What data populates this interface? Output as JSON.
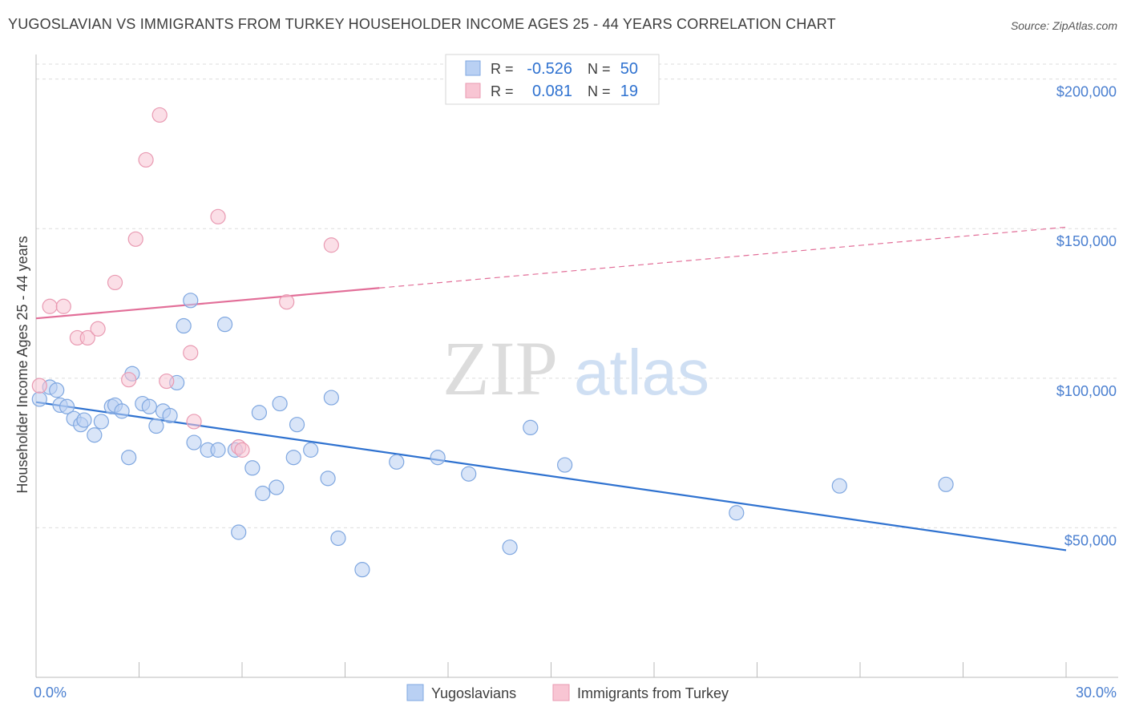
{
  "header": {
    "title": "YUGOSLAVIAN VS IMMIGRANTS FROM TURKEY HOUSEHOLDER INCOME AGES 25 - 44 YEARS CORRELATION CHART",
    "source": "Source: ZipAtlas.com"
  },
  "watermark": {
    "zip": "ZIP",
    "atlas": "atlas"
  },
  "colors": {
    "blue_fill": "#b9d0f3",
    "blue_stroke": "#7fa7e0",
    "blue_line": "#2f72d0",
    "pink_fill": "#f8c5d3",
    "pink_stroke": "#e99ab2",
    "pink_line": "#e26e98",
    "tick_text": "#4a7fd0",
    "grid": "#dddddd"
  },
  "stats_box": {
    "rows": [
      {
        "r_label": "R =",
        "r_value": "-0.526",
        "n_label": "N =",
        "n_value": "50",
        "color": "#b9d0f3"
      },
      {
        "r_label": "R =",
        "r_value": "0.081",
        "n_label": "N =",
        "n_value": "19",
        "color": "#f8c5d3"
      }
    ]
  },
  "chart_data": {
    "type": "scatter",
    "title": "YUGOSLAVIAN VS IMMIGRANTS FROM TURKEY HOUSEHOLDER INCOME AGES 25 - 44 YEARS CORRELATION CHART",
    "xlabel": "",
    "ylabel": "Householder Income Ages 25 - 44 years",
    "xlim": [
      0,
      30
    ],
    "ylim": [
      0,
      205000
    ],
    "x_tick_labels": [
      "0.0%",
      "30.0%"
    ],
    "y_ticks": [
      50000,
      100000,
      150000,
      200000
    ],
    "y_tick_labels": [
      "$50,000",
      "$100,000",
      "$150,000",
      "$200,000"
    ],
    "grid": true,
    "legend_position": "bottom-center",
    "series": [
      {
        "name": "Yugoslavians",
        "color": "#b9d0f3",
        "trend": {
          "x": [
            0,
            30
          ],
          "y": [
            92000,
            42500
          ],
          "dashed_from": null
        },
        "points": [
          [
            0.1,
            93000
          ],
          [
            0.4,
            97000
          ],
          [
            0.6,
            96000
          ],
          [
            0.7,
            91000
          ],
          [
            0.9,
            90500
          ],
          [
            1.1,
            86500
          ],
          [
            1.3,
            84500
          ],
          [
            1.4,
            86000
          ],
          [
            1.7,
            81000
          ],
          [
            1.9,
            85500
          ],
          [
            2.2,
            90500
          ],
          [
            2.3,
            91000
          ],
          [
            2.5,
            89000
          ],
          [
            2.7,
            73500
          ],
          [
            2.8,
            101500
          ],
          [
            3.1,
            91500
          ],
          [
            3.3,
            90500
          ],
          [
            3.5,
            84000
          ],
          [
            3.7,
            89000
          ],
          [
            3.9,
            87500
          ],
          [
            4.1,
            98500
          ],
          [
            4.3,
            117500
          ],
          [
            4.5,
            126000
          ],
          [
            4.6,
            78500
          ],
          [
            5.0,
            76000
          ],
          [
            5.3,
            76000
          ],
          [
            5.5,
            118000
          ],
          [
            5.8,
            76000
          ],
          [
            5.9,
            48500
          ],
          [
            6.3,
            70000
          ],
          [
            6.5,
            88500
          ],
          [
            6.6,
            61500
          ],
          [
            7.0,
            63500
          ],
          [
            7.1,
            91500
          ],
          [
            7.5,
            73500
          ],
          [
            7.6,
            84500
          ],
          [
            8.0,
            76000
          ],
          [
            8.5,
            66500
          ],
          [
            8.6,
            93500
          ],
          [
            8.8,
            46500
          ],
          [
            9.5,
            36000
          ],
          [
            10.5,
            72000
          ],
          [
            11.7,
            73500
          ],
          [
            12.6,
            68000
          ],
          [
            13.8,
            43500
          ],
          [
            14.4,
            83500
          ],
          [
            15.4,
            71000
          ],
          [
            20.4,
            55000
          ],
          [
            23.4,
            64000
          ],
          [
            26.5,
            64500
          ]
        ]
      },
      {
        "name": "Immigrants from Turkey",
        "color": "#f8c5d3",
        "trend": {
          "x": [
            0,
            30
          ],
          "y": [
            120000,
            150500
          ],
          "dashed_from": 10
        },
        "points": [
          [
            0.1,
            97500
          ],
          [
            0.4,
            124000
          ],
          [
            0.8,
            124000
          ],
          [
            1.2,
            113500
          ],
          [
            1.5,
            113500
          ],
          [
            1.8,
            116500
          ],
          [
            2.3,
            132000
          ],
          [
            2.7,
            99500
          ],
          [
            2.9,
            146500
          ],
          [
            3.2,
            173000
          ],
          [
            3.6,
            188000
          ],
          [
            3.8,
            99000
          ],
          [
            4.5,
            108500
          ],
          [
            4.6,
            85500
          ],
          [
            5.3,
            154000
          ],
          [
            5.9,
            77000
          ],
          [
            6.0,
            76000
          ],
          [
            7.3,
            125500
          ],
          [
            8.6,
            144500
          ]
        ]
      }
    ]
  }
}
